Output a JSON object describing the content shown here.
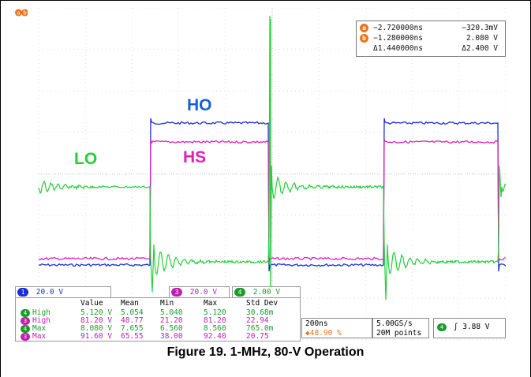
{
  "cursor_readout": {
    "rows": [
      {
        "marker": "a",
        "time": "−2.720000ns",
        "value": "−320.3mV"
      },
      {
        "marker": "b",
        "time": "−1.280000ns",
        "value": "2.080 V"
      },
      {
        "marker": "Δ",
        "time": "Δ1.440000ns",
        "value": "Δ2.400 V"
      }
    ],
    "top_marker_label": "ab"
  },
  "signals": {
    "ho": {
      "label": "HO",
      "color": "#1a2fd4"
    },
    "hs": {
      "label": "HS",
      "color": "#e020b8"
    },
    "lo": {
      "label": "LO",
      "color": "#23cf3a"
    }
  },
  "channels": [
    {
      "num": "1",
      "scale": "20.0 V",
      "color": "#1a2fd4"
    },
    {
      "num": "3",
      "scale": "20.0 V",
      "color": "#c020b0"
    },
    {
      "num": "4",
      "scale": "2.00 V",
      "color": "#1f9a2e"
    }
  ],
  "measurements": {
    "headers": [
      "Value",
      "Mean",
      "Min",
      "Max",
      "Std Dev"
    ],
    "rows": [
      {
        "ch": "4",
        "name": "High",
        "color": "#1f9a2e",
        "values": [
          "5.120 V",
          "5.054",
          "5.040",
          "5.120",
          "30.68m"
        ]
      },
      {
        "ch": "3",
        "name": "High",
        "color": "#c020b0",
        "values": [
          "81.20 V",
          "48.77",
          "21.20",
          "81.20",
          "22.94"
        ]
      },
      {
        "ch": "4",
        "name": "Max",
        "color": "#1f9a2e",
        "values": [
          "8.080 V",
          "7.655",
          "6.560",
          "8.560",
          "765.0m"
        ]
      },
      {
        "ch": "3",
        "name": "Max",
        "color": "#c020b0",
        "values": [
          "91.60 V",
          "65.55",
          "38.00",
          "92.40",
          "20.75"
        ]
      }
    ]
  },
  "status": {
    "timebase": "200ns",
    "trigger_pos": "48.90 %",
    "sample_rate": "5.00GS/s",
    "record_length": "20M points",
    "trigger_channel": "4",
    "trigger_level": "3.88 V"
  },
  "caption": "Figure 19. 1-MHz, 80-V Operation"
}
